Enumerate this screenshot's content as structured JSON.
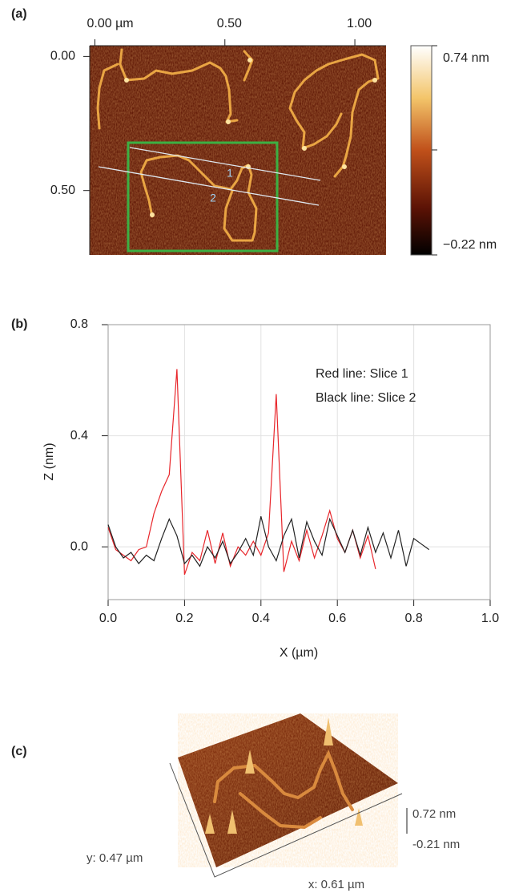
{
  "panel_a": {
    "label": "(a)",
    "xlim": [
      -0.02,
      1.12
    ],
    "ylim": [
      -0.04,
      0.74
    ],
    "xticks": [
      {
        "value": 0,
        "label": "0.00 µm"
      },
      {
        "value": 0.5,
        "label": "0.50"
      },
      {
        "value": 1,
        "label": "1.00"
      }
    ],
    "yticks": [
      {
        "value": 0,
        "label": "0.00"
      },
      {
        "value": 0.5,
        "label": "0.50"
      }
    ],
    "colorbar": {
      "lim": [
        -0.22,
        0.74
      ],
      "ticks": [
        {
          "value": 0.74,
          "label": "0.74 nm"
        },
        {
          "value": -0.22,
          "label": "−0.22 nm"
        }
      ]
    },
    "slice_labels": [
      "1",
      "2"
    ]
  },
  "chart_data": {
    "type": "line",
    "label": "(b)",
    "x_label": "X (µm)",
    "y_label": "Z (nm)",
    "xlim": [
      0,
      1
    ],
    "ylim": [
      -0.19,
      0.8
    ],
    "xticks": [
      {
        "value": 0,
        "label": "0.0"
      },
      0.2,
      0.4,
      0.6,
      0.8,
      {
        "value": 1,
        "label": "1.0"
      }
    ],
    "yticks": [
      {
        "value": 0,
        "label": "0.0"
      },
      0.4,
      0.8
    ],
    "grid": true,
    "series": [
      {
        "name": "Red line: Slice 1",
        "color": "#e8262b",
        "x": [
          0,
          0.02,
          0.04,
          0.06,
          0.08,
          0.1,
          0.12,
          0.14,
          0.16,
          0.18,
          0.2,
          0.22,
          0.24,
          0.26,
          0.28,
          0.3,
          0.32,
          0.34,
          0.36,
          0.38,
          0.4,
          0.42,
          0.44,
          0.46,
          0.48,
          0.5,
          0.52,
          0.54,
          0.56,
          0.58,
          0.6,
          0.62,
          0.64,
          0.66,
          0.68,
          0.7
        ],
        "values": [
          0.07,
          -0.01,
          -0.03,
          -0.05,
          -0.01,
          0.0,
          0.12,
          0.2,
          0.26,
          0.64,
          -0.1,
          -0.02,
          -0.05,
          0.06,
          -0.06,
          0.05,
          -0.07,
          0.0,
          -0.03,
          0.02,
          -0.03,
          0.05,
          0.55,
          -0.09,
          0.02,
          -0.05,
          0.06,
          -0.04,
          0.04,
          0.13,
          0.03,
          -0.02,
          0.06,
          -0.04,
          0.04,
          -0.08
        ]
      },
      {
        "name": "Black line: Slice 2",
        "color": "#222222",
        "x": [
          0,
          0.02,
          0.04,
          0.06,
          0.08,
          0.1,
          0.12,
          0.14,
          0.16,
          0.18,
          0.2,
          0.22,
          0.24,
          0.26,
          0.28,
          0.3,
          0.32,
          0.34,
          0.36,
          0.38,
          0.4,
          0.42,
          0.44,
          0.46,
          0.48,
          0.5,
          0.52,
          0.54,
          0.56,
          0.58,
          0.6,
          0.62,
          0.64,
          0.66,
          0.68,
          0.7,
          0.72,
          0.74,
          0.76,
          0.78,
          0.8,
          0.82,
          0.84
        ],
        "values": [
          0.08,
          0.0,
          -0.04,
          -0.02,
          -0.06,
          -0.03,
          -0.05,
          0.03,
          0.1,
          0.04,
          -0.06,
          -0.03,
          -0.07,
          0.0,
          -0.04,
          0.02,
          -0.06,
          -0.02,
          0.03,
          -0.03,
          0.11,
          0.0,
          -0.05,
          0.04,
          0.1,
          -0.04,
          0.09,
          0.02,
          -0.03,
          0.1,
          0.04,
          -0.02,
          0.06,
          -0.03,
          0.07,
          -0.02,
          0.05,
          -0.04,
          0.06,
          -0.07,
          0.03,
          0.01,
          -0.01
        ]
      }
    ]
  },
  "panel_c": {
    "label": "(c)",
    "scale_ticks": [
      {
        "value": 0.72,
        "label": "0.72 nm"
      },
      {
        "value": -0.21,
        "label": "-0.21 nm"
      }
    ],
    "y_extent": "y: 0.47 µm",
    "x_extent": "x: 0.61 µm"
  }
}
